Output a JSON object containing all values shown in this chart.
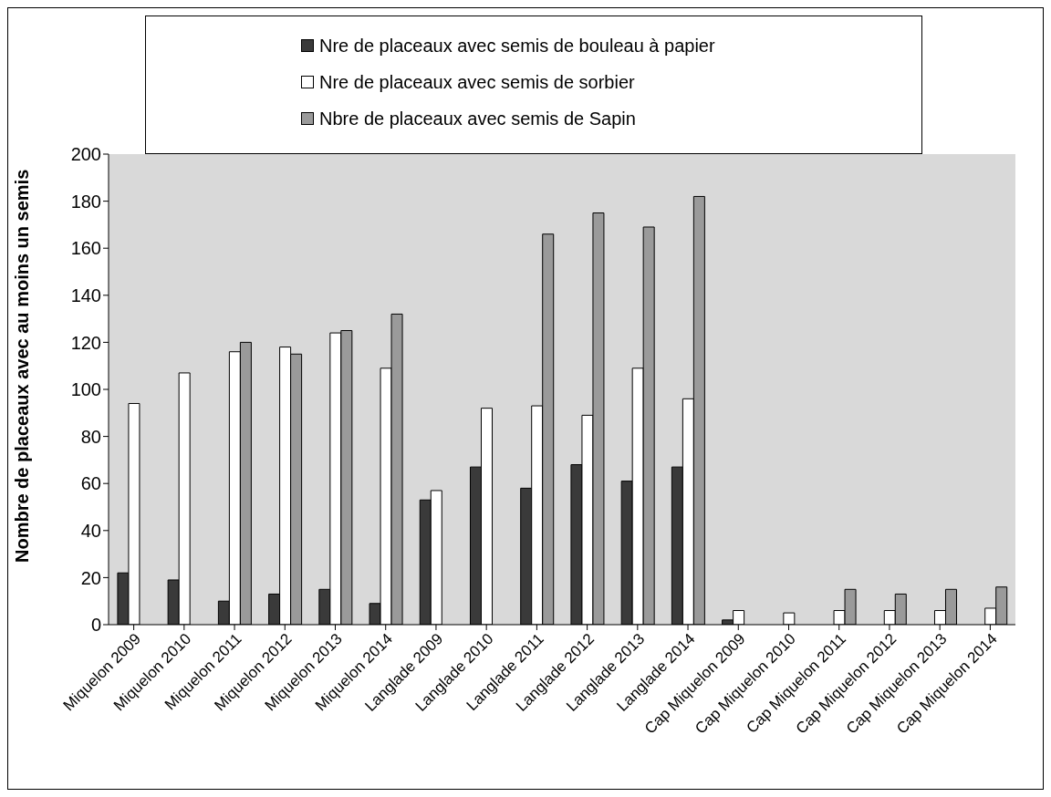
{
  "chart_data": {
    "type": "bar",
    "ylabel": "Nombre de placeaux avec au moins un semis",
    "categories": [
      "Miquelon 2009",
      "Miquelon 2010",
      "Miquelon 2011",
      "Miquelon 2012",
      "Miquelon 2013",
      "Miquelon 2014",
      "Langlade 2009",
      "Langlade 2010",
      "Langlade 2011",
      "Langlade 2012",
      "Langlade 2013",
      "Langlade 2014",
      "Cap Miquelon 2009",
      "Cap Miquelon 2010",
      "Cap Miquelon 2011",
      "Cap Miquelon 2012",
      "Cap Miquelon 2013",
      "Cap Miquelon 2014"
    ],
    "series": [
      {
        "name": "Nre de placeaux  avec semis de bouleau à papier",
        "color": "#3a3a3a",
        "values": [
          22,
          19,
          10,
          13,
          15,
          9,
          53,
          67,
          58,
          68,
          61,
          67,
          2,
          null,
          null,
          null,
          null,
          null
        ]
      },
      {
        "name": "Nre de placeaux  avec semis de sorbier",
        "color": "#ffffff",
        "values": [
          94,
          107,
          116,
          118,
          124,
          109,
          57,
          92,
          93,
          89,
          109,
          96,
          6,
          5,
          6,
          6,
          6,
          7
        ]
      },
      {
        "name": "Nbre de placeaux avec semis de Sapin",
        "color": "#9a9a9a",
        "values": [
          null,
          null,
          120,
          115,
          125,
          132,
          null,
          null,
          166,
          175,
          169,
          182,
          null,
          null,
          15,
          13,
          15,
          16
        ]
      }
    ],
    "ylim": [
      0,
      200
    ],
    "yticks": [
      0,
      20,
      40,
      60,
      80,
      100,
      120,
      140,
      160,
      180,
      200
    ],
    "grid": false,
    "legend": "top"
  }
}
